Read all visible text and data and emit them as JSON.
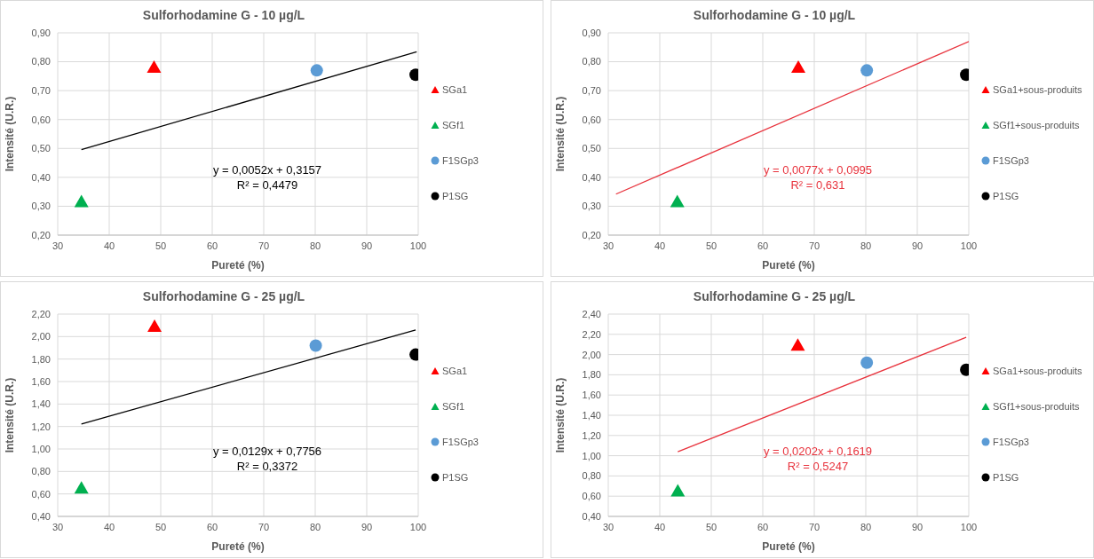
{
  "chart_data": [
    {
      "type": "scatter",
      "title": "Sulforhodamine G - 10 µg/L",
      "xlabel": "Pureté (%)",
      "ylabel": "Intensité (U.R.)",
      "xlim": [
        30,
        100
      ],
      "xticks": [
        30,
        40,
        50,
        60,
        70,
        80,
        90,
        100
      ],
      "ylim": [
        0.2,
        0.9
      ],
      "yticks": [
        {
          "value": 0.2,
          "label": "0,20"
        },
        {
          "value": 0.3,
          "label": "0,30"
        },
        {
          "value": 0.4,
          "label": "0,40"
        },
        {
          "value": 0.5,
          "label": "0,50"
        },
        {
          "value": 0.6,
          "label": "0,60"
        },
        {
          "value": 0.7,
          "label": "0,70"
        },
        {
          "value": 0.8,
          "label": "0,80"
        },
        {
          "value": 0.9,
          "label": "0,90"
        }
      ],
      "grid": true,
      "legend": "right",
      "annotations": [
        "y = 0,0052x + 0,3157",
        "R² = 0,4479"
      ],
      "series": [
        {
          "name": "SGa1",
          "color": "#ff0000",
          "marker": "triangle",
          "x": [
            48.7
          ],
          "values": [
            0.78
          ]
        },
        {
          "name": "SGf1",
          "color": "#00b050",
          "marker": "triangle",
          "x": [
            34.6
          ],
          "values": [
            0.315
          ]
        },
        {
          "name": "F1SGp3",
          "color": "#5b9bd5",
          "marker": "circle",
          "x": [
            80.3
          ],
          "values": [
            0.77
          ]
        },
        {
          "name": "P1SG",
          "color": "#000000",
          "marker": "circle",
          "x": [
            99.5
          ],
          "values": [
            0.755
          ]
        },
        {
          "type": "line",
          "color": "#000000",
          "x": [
            34.6,
            99.7
          ],
          "values": [
            0.496,
            0.834
          ]
        }
      ]
    },
    {
      "type": "scatter",
      "title": "Sulforhodamine G - 10 µg/L",
      "xlabel": "Pureté (%)",
      "ylabel": "Intensité (U.R.)",
      "xlim": [
        30,
        100
      ],
      "xticks": [
        30,
        40,
        50,
        60,
        70,
        80,
        90,
        100
      ],
      "ylim": [
        0.2,
        0.9
      ],
      "yticks": [
        {
          "value": 0.2,
          "label": "0,20"
        },
        {
          "value": 0.3,
          "label": "0,30"
        },
        {
          "value": 0.4,
          "label": "0,40"
        },
        {
          "value": 0.5,
          "label": "0,50"
        },
        {
          "value": 0.6,
          "label": "0,60"
        },
        {
          "value": 0.7,
          "label": "0,70"
        },
        {
          "value": 0.8,
          "label": "0,80"
        },
        {
          "value": 0.9,
          "label": "0,90"
        }
      ],
      "grid": true,
      "legend": "right",
      "annotations": [
        "y = 0,0077x + 0,0995",
        "R² = 0,631"
      ],
      "series": [
        {
          "name": "SGa1+sous-produits",
          "color": "#ff0000",
          "marker": "triangle",
          "x": [
            66.9
          ],
          "values": [
            0.78
          ]
        },
        {
          "name": "SGf1+sous-produits",
          "color": "#00b050",
          "marker": "triangle",
          "x": [
            43.4
          ],
          "values": [
            0.315
          ]
        },
        {
          "name": "F1SGp3",
          "color": "#5b9bd5",
          "marker": "circle",
          "x": [
            80.2
          ],
          "values": [
            0.77
          ]
        },
        {
          "name": "P1SG",
          "color": "#000000",
          "marker": "circle",
          "x": [
            99.5
          ],
          "values": [
            0.755
          ]
        },
        {
          "type": "line",
          "color": "#e8323c",
          "x": [
            31.5,
            100
          ],
          "values": [
            0.342,
            0.87
          ]
        }
      ]
    },
    {
      "type": "scatter",
      "title": "Sulforhodamine G - 25 µg/L",
      "xlabel": "Pureté (%)",
      "ylabel": "Intensité (U.R.)",
      "xlim": [
        30,
        100
      ],
      "xticks": [
        30,
        40,
        50,
        60,
        70,
        80,
        90,
        100
      ],
      "ylim": [
        0.4,
        2.2
      ],
      "yticks": [
        {
          "value": 0.4,
          "label": "0,40"
        },
        {
          "value": 0.6,
          "label": "0,60"
        },
        {
          "value": 0.8,
          "label": "0,80"
        },
        {
          "value": 1.0,
          "label": "1,00"
        },
        {
          "value": 1.2,
          "label": "1,20"
        },
        {
          "value": 1.4,
          "label": "1,40"
        },
        {
          "value": 1.6,
          "label": "1,60"
        },
        {
          "value": 1.8,
          "label": "1,80"
        },
        {
          "value": 2.0,
          "label": "2,00"
        },
        {
          "value": 2.2,
          "label": "2,20"
        }
      ],
      "grid": true,
      "legend": "right",
      "annotations": [
        "y = 0,0129x + 0,7756",
        "R² = 0,3372"
      ],
      "series": [
        {
          "name": "SGa1",
          "color": "#ff0000",
          "marker": "triangle",
          "x": [
            48.8
          ],
          "values": [
            2.09
          ]
        },
        {
          "name": "SGf1",
          "color": "#00b050",
          "marker": "triangle",
          "x": [
            34.6
          ],
          "values": [
            0.65
          ]
        },
        {
          "name": "F1SGp3",
          "color": "#5b9bd5",
          "marker": "circle",
          "x": [
            80.1
          ],
          "values": [
            1.92
          ]
        },
        {
          "name": "P1SG",
          "color": "#000000",
          "marker": "circle",
          "x": [
            99.5
          ],
          "values": [
            1.84
          ]
        },
        {
          "type": "line",
          "color": "#000000",
          "x": [
            34.6,
            99.5
          ],
          "values": [
            1.222,
            2.059
          ]
        }
      ]
    },
    {
      "type": "scatter",
      "title": "Sulforhodamine G - 25 µg/L",
      "xlabel": "Pureté (%)",
      "ylabel": "Intensité (U.R.)",
      "xlim": [
        30,
        100
      ],
      "xticks": [
        30,
        40,
        50,
        60,
        70,
        80,
        90,
        100
      ],
      "ylim": [
        0.4,
        2.4
      ],
      "yticks": [
        {
          "value": 0.4,
          "label": "0,40"
        },
        {
          "value": 0.6,
          "label": "0,60"
        },
        {
          "value": 0.8,
          "label": "0,80"
        },
        {
          "value": 1.0,
          "label": "1,00"
        },
        {
          "value": 1.2,
          "label": "1,20"
        },
        {
          "value": 1.4,
          "label": "1,40"
        },
        {
          "value": 1.6,
          "label": "1,60"
        },
        {
          "value": 1.8,
          "label": "1,80"
        },
        {
          "value": 2.0,
          "label": "2,00"
        },
        {
          "value": 2.2,
          "label": "2,20"
        },
        {
          "value": 2.4,
          "label": "2,40"
        }
      ],
      "grid": true,
      "legend": "right",
      "annotations": [
        "y = 0,0202x + 0,1619",
        "R² = 0,5247"
      ],
      "series": [
        {
          "name": "SGa1+sous-produits",
          "color": "#ff0000",
          "marker": "triangle",
          "x": [
            66.8
          ],
          "values": [
            2.09
          ]
        },
        {
          "name": "SGf1+sous-produits",
          "color": "#00b050",
          "marker": "triangle",
          "x": [
            43.5
          ],
          "values": [
            0.65
          ]
        },
        {
          "name": "F1SGp3",
          "color": "#5b9bd5",
          "marker": "circle",
          "x": [
            80.2
          ],
          "values": [
            1.92
          ]
        },
        {
          "name": "P1SG",
          "color": "#000000",
          "marker": "circle",
          "x": [
            99.5
          ],
          "values": [
            1.85
          ]
        },
        {
          "type": "line",
          "color": "#e8323c",
          "x": [
            43.5,
            99.5
          ],
          "values": [
            1.04,
            2.17
          ]
        }
      ]
    }
  ]
}
